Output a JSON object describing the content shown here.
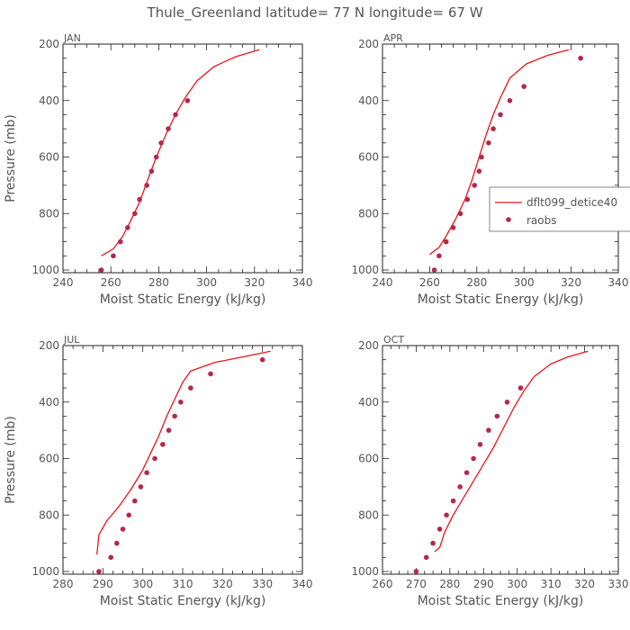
{
  "title": "Thule_Greenland  latitude= 77 N longitude= 67 W",
  "legend": {
    "model_label": "dflt099_detice40",
    "obs_label": "raobs",
    "model_color": "#e8151b",
    "obs_color": "#b5284e"
  },
  "chart_data": [
    {
      "type": "line",
      "panel": "JAN",
      "xlabel": "Moist Static Energy (kJ/kg)",
      "ylabel": "Pressure (mb)",
      "xlim": [
        240,
        340
      ],
      "xticks": [
        240,
        260,
        280,
        300,
        320,
        340
      ],
      "ylim": [
        1020,
        200
      ],
      "yticks": [
        200,
        400,
        600,
        800,
        1000
      ],
      "model": {
        "x": [
          256,
          261,
          265,
          268,
          272,
          275,
          279,
          283,
          287,
          291,
          296,
          303,
          312,
          322
        ],
        "y": [
          950,
          925,
          880,
          830,
          760,
          690,
          600,
          520,
          450,
          390,
          330,
          280,
          245,
          220
        ]
      },
      "obs": {
        "x": [
          256,
          261,
          264,
          267,
          270,
          272,
          275,
          277,
          279,
          281,
          284,
          287,
          292
        ],
        "y": [
          1000,
          950,
          900,
          850,
          800,
          750,
          700,
          650,
          600,
          550,
          500,
          450,
          400
        ]
      }
    },
    {
      "type": "line",
      "panel": "APR",
      "xlabel": "Moist Static Energy (kJ/kg)",
      "ylabel": "",
      "xlim": [
        240,
        340
      ],
      "xticks": [
        240,
        260,
        280,
        300,
        320,
        340
      ],
      "ylim": [
        1020,
        200
      ],
      "yticks": [
        200,
        400,
        600,
        800,
        1000
      ],
      "model": {
        "x": [
          260,
          264,
          267,
          271,
          275,
          278,
          281,
          284,
          287,
          290,
          294,
          301,
          310,
          319
        ],
        "y": [
          945,
          920,
          880,
          820,
          750,
          680,
          600,
          520,
          450,
          390,
          320,
          270,
          240,
          220
        ]
      },
      "obs": {
        "x": [
          262,
          264,
          267,
          270,
          273,
          276,
          279,
          281,
          282,
          285,
          287,
          290,
          294,
          300,
          324
        ],
        "y": [
          1000,
          950,
          900,
          850,
          800,
          750,
          700,
          650,
          600,
          550,
          500,
          450,
          400,
          350,
          250
        ]
      }
    },
    {
      "type": "line",
      "panel": "JUL",
      "xlabel": "Moist Static Energy (kJ/kg)",
      "ylabel": "Pressure (mb)",
      "xlim": [
        280,
        340
      ],
      "xticks": [
        280,
        290,
        300,
        310,
        320,
        330,
        340
      ],
      "ylim": [
        1020,
        200
      ],
      "yticks": [
        200,
        400,
        600,
        800,
        1000
      ],
      "model": {
        "x": [
          288.5,
          289,
          291,
          294,
          297,
          300,
          302,
          304,
          306,
          308,
          310,
          312,
          318,
          325,
          332
        ],
        "y": [
          940,
          870,
          820,
          770,
          710,
          640,
          580,
          520,
          450,
          390,
          330,
          290,
          260,
          240,
          220
        ]
      },
      "obs": {
        "x": [
          289,
          292,
          293.5,
          295,
          296.5,
          298,
          299.5,
          301,
          303,
          305,
          306.5,
          308,
          309.5,
          312,
          317,
          330
        ],
        "y": [
          1000,
          950,
          900,
          850,
          800,
          750,
          700,
          650,
          600,
          550,
          500,
          450,
          400,
          350,
          300,
          250
        ]
      }
    },
    {
      "type": "line",
      "panel": "OCT",
      "xlabel": "Moist Static Energy (kJ/kg)",
      "ylabel": "",
      "xlim": [
        260,
        330
      ],
      "xticks": [
        260,
        270,
        280,
        290,
        300,
        310,
        320,
        330
      ],
      "ylim": [
        1020,
        200
      ],
      "yticks": [
        200,
        400,
        600,
        800,
        1000
      ],
      "model": {
        "x": [
          275.5,
          277,
          278.5,
          281,
          284,
          287,
          290,
          293,
          296,
          299,
          302,
          305,
          310,
          315,
          321
        ],
        "y": [
          930,
          915,
          860,
          800,
          740,
          680,
          620,
          560,
          490,
          420,
          360,
          310,
          265,
          240,
          220
        ]
      },
      "obs": {
        "x": [
          270,
          273,
          275,
          277,
          279,
          281,
          283,
          285,
          287,
          289,
          291.5,
          294,
          297,
          301
        ],
        "y": [
          1000,
          950,
          900,
          850,
          800,
          750,
          700,
          650,
          600,
          550,
          500,
          450,
          400,
          350
        ]
      }
    }
  ]
}
